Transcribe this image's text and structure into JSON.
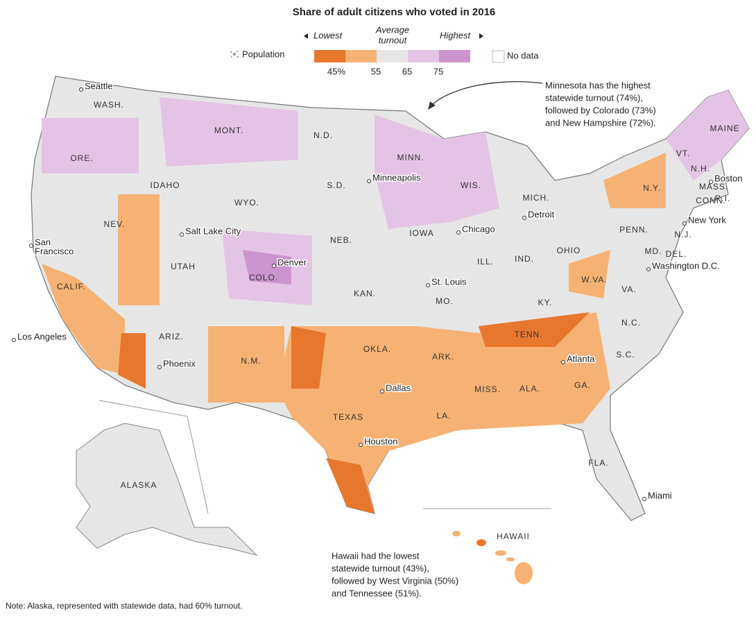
{
  "title": "Share of adult citizens who voted in 2016",
  "legend": {
    "lowest": "Lowest",
    "average": [
      "Average",
      "turnout"
    ],
    "highest": "Highest",
    "colors": [
      "#e8772e",
      "#f6b274",
      "#e6e6e6",
      "#e4c4e4",
      "#cc94cc"
    ],
    "ticks": [
      "45%",
      "55",
      "65",
      "75"
    ],
    "no_data": "No data",
    "population": "Population"
  },
  "states": [
    "WASH.",
    "ORE.",
    "CALIF.",
    "NEV.",
    "IDAHO",
    "MONT.",
    "WYO.",
    "UTAH",
    "ARIZ.",
    "COLO.",
    "N.M.",
    "N.D.",
    "S.D.",
    "NEB.",
    "KAN.",
    "OKLA.",
    "TEXAS",
    "MINN.",
    "IOWA",
    "MO.",
    "ARK.",
    "LA.",
    "WIS.",
    "ILL.",
    "MICH.",
    "IND.",
    "OHIO",
    "KY.",
    "TENN.",
    "MISS.",
    "ALA.",
    "GA.",
    "FLA.",
    "S.C.",
    "N.C.",
    "VA.",
    "W.VA.",
    "PENN.",
    "N.Y.",
    "VT.",
    "MAINE",
    "N.H.",
    "MASS.",
    "CONN.",
    "R.I.",
    "N.J.",
    "DEL.",
    "MD.",
    "ALASKA",
    "HAWAII"
  ],
  "cities": [
    [
      "Seattle"
    ],
    [
      "Minneapolis"
    ],
    [
      "Salt Lake City"
    ],
    [
      "San",
      "Francisco"
    ],
    [
      "Denver"
    ],
    [
      "Chicago"
    ],
    [
      "Detroit"
    ],
    [
      "St. Louis"
    ],
    [
      "Los Angeles"
    ],
    [
      "Phoenix"
    ],
    [
      "Dallas"
    ],
    [
      "Houston"
    ],
    [
      "Atlanta"
    ],
    [
      "Miami"
    ],
    [
      "Washington D.C."
    ],
    [
      "New York"
    ],
    [
      "Boston"
    ]
  ],
  "annotations": {
    "minnesota": [
      "Minnesota has the highest",
      "statewide turnout (74%),",
      "followed by Colorado (73%)",
      "and New Hampshire (72%)."
    ],
    "hawaii": [
      "Hawaii had the lowest",
      "statewide turnout (43%),",
      "followed by West Virginia (50%)",
      "and Tennessee (51%)."
    ]
  },
  "note": "Note: Alaska, represented with statewide data, had 60% turnout."
}
